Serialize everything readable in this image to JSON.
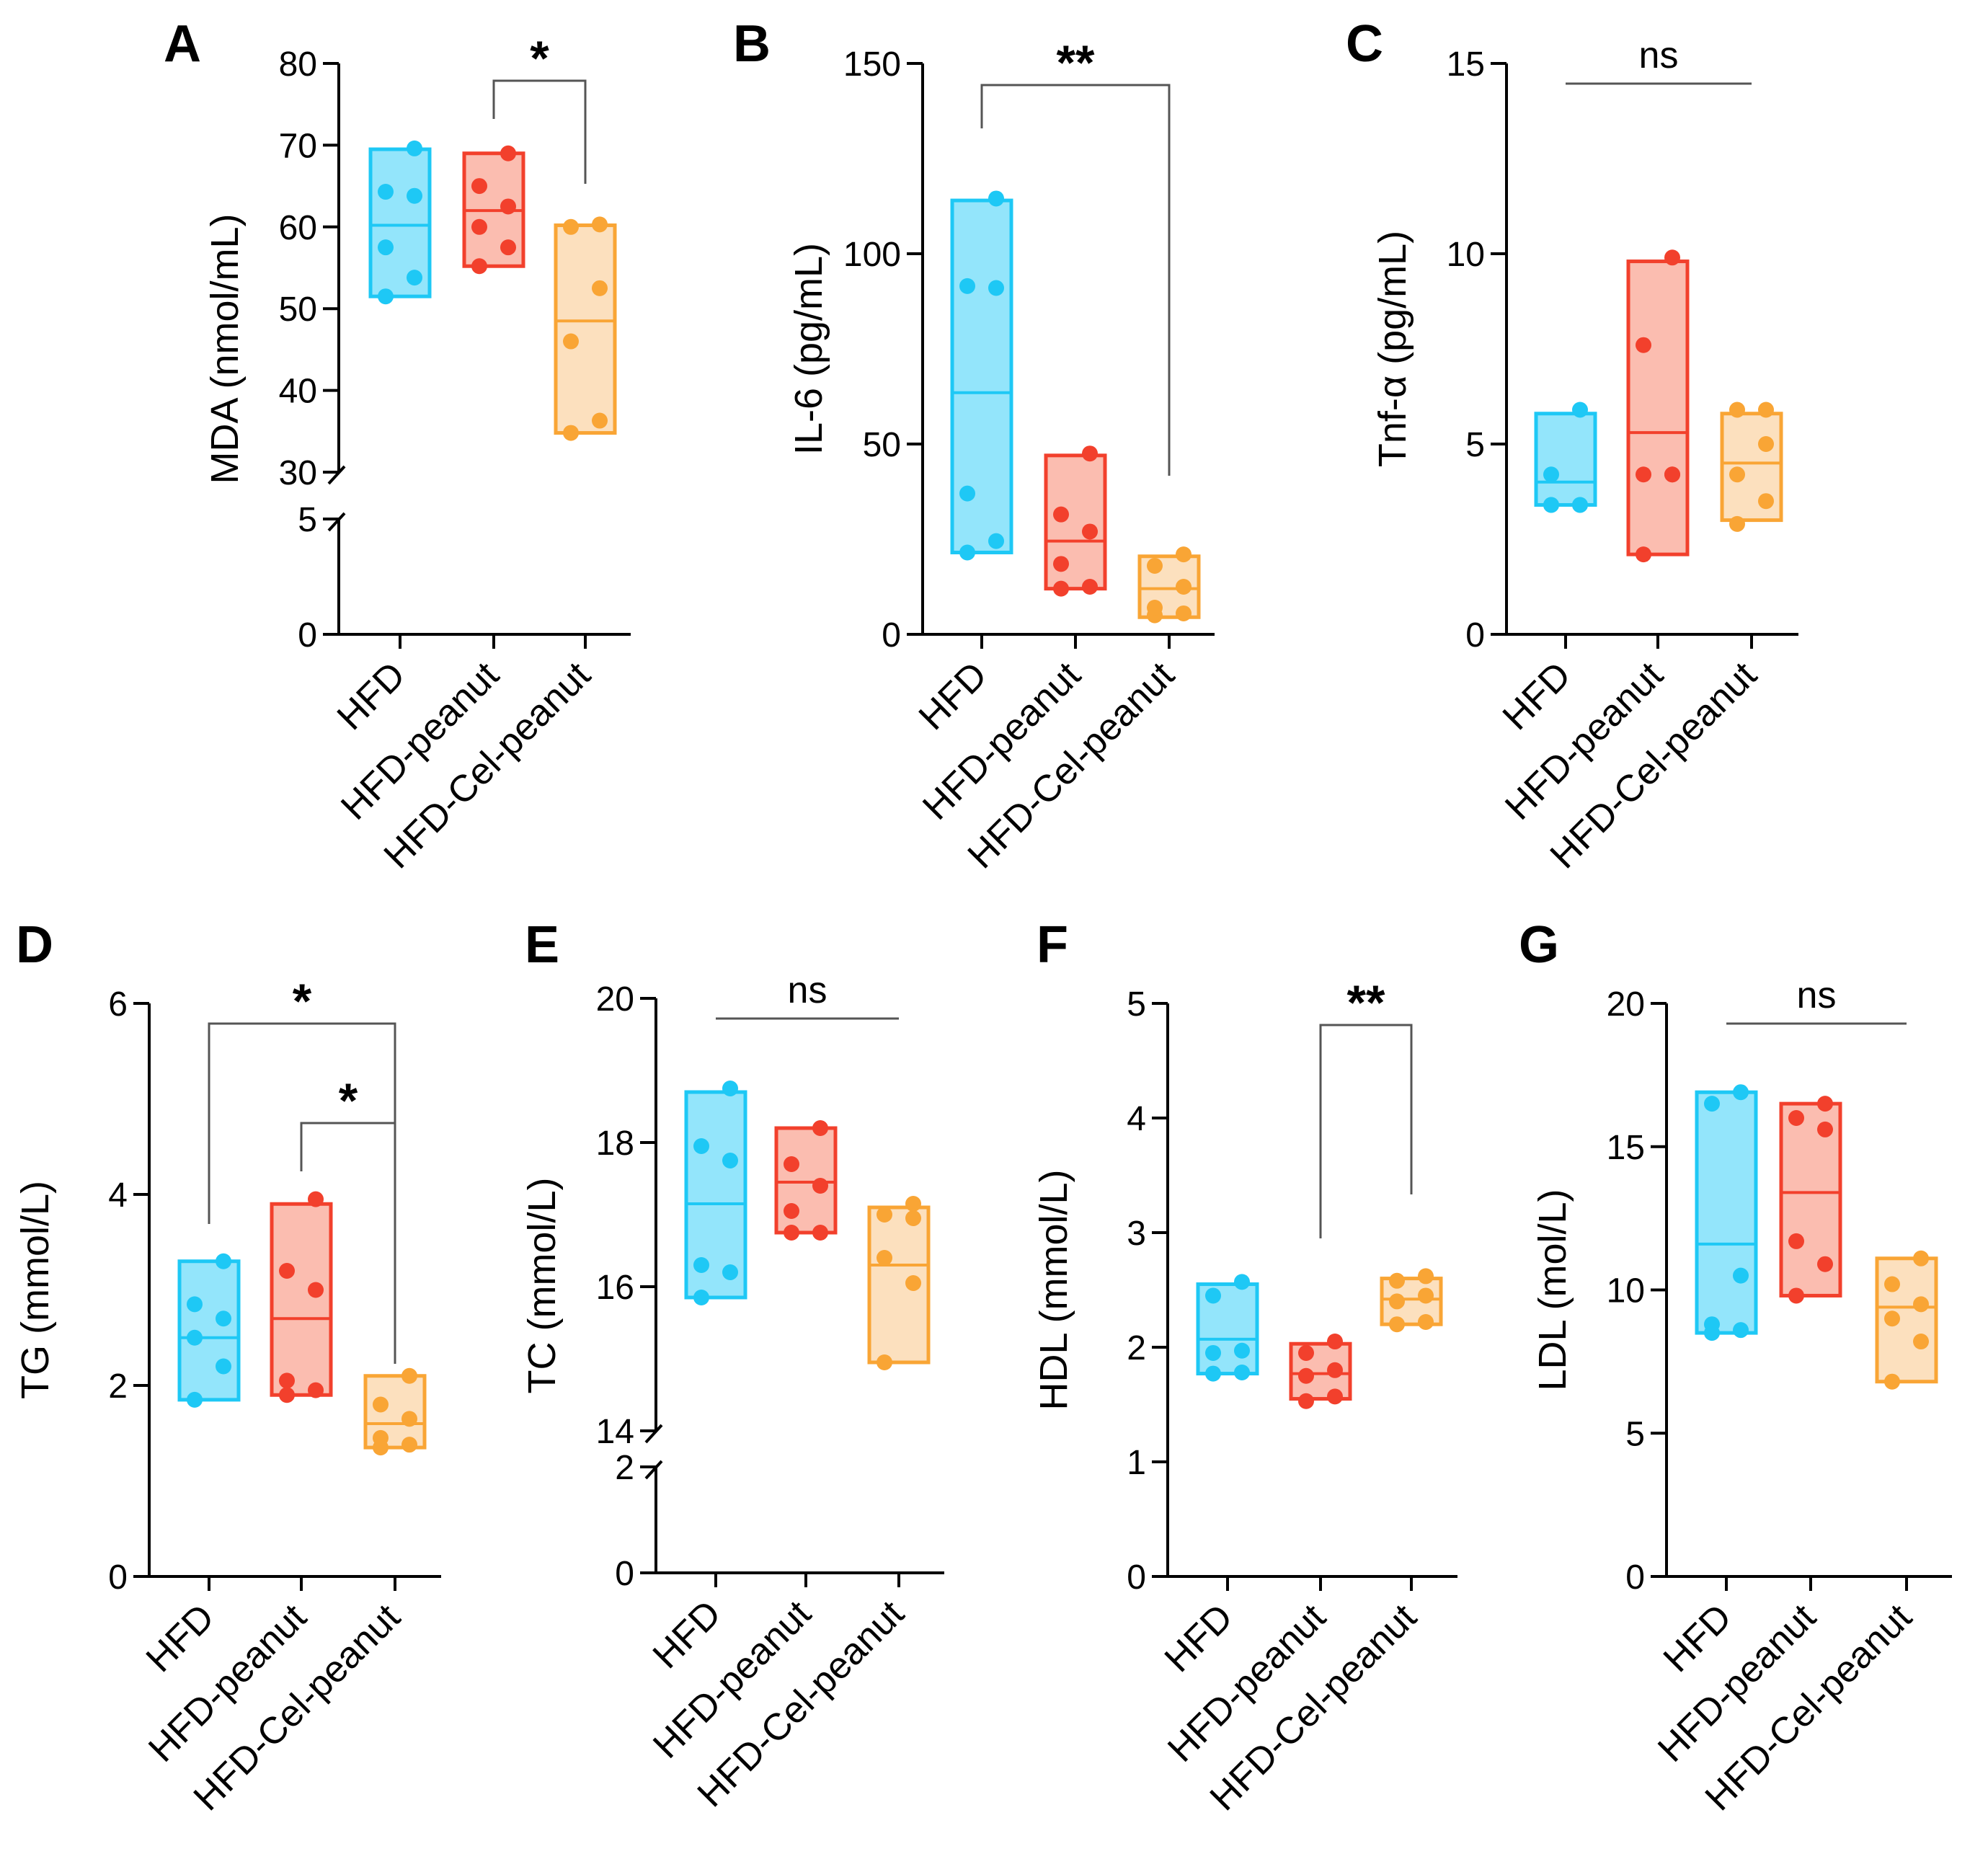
{
  "colors": {
    "HFD": "#1ec8f5",
    "HFD-peanut": "#f2402c",
    "HFD-Cel-peanut": "#f9a535",
    "HFD_fill": "#6fdcfa",
    "HFD-peanut_fill": "#f9a796",
    "HFD-Cel-peanut_fill": "#fbd6a8",
    "axis": "#000000"
  },
  "chart_data": [
    {
      "panel": "A",
      "type": "floating-bar-scatter",
      "ylabel": "MDA (nmol/mL)",
      "categories": [
        "HFD",
        "HFD-peanut",
        "HFD-Cel-peanut"
      ],
      "yticks_lower": [
        "0",
        "5"
      ],
      "yticks_upper": [
        "30",
        "40",
        "50",
        "60",
        "70",
        "80"
      ],
      "ylim_lower": [
        0,
        5
      ],
      "ylim_upper": [
        30,
        80
      ],
      "axis_break": true,
      "series": [
        {
          "name": "HFD",
          "min": 51.5,
          "max": 69.5,
          "median": 60.2,
          "points": [
            51.5,
            53.8,
            57.5,
            63.8,
            64.3,
            69.6
          ]
        },
        {
          "name": "HFD-peanut",
          "min": 55.2,
          "max": 69.0,
          "median": 62.0,
          "points": [
            55.2,
            57.5,
            60.0,
            62.5,
            65.0,
            69.0
          ]
        },
        {
          "name": "HFD-Cel-peanut",
          "min": 34.8,
          "max": 60.2,
          "median": 48.5,
          "points": [
            34.8,
            36.3,
            46.0,
            52.5,
            60.0,
            60.3
          ]
        }
      ],
      "comparisons": [
        {
          "from": 1,
          "to": 2,
          "label": "*"
        }
      ]
    },
    {
      "panel": "B",
      "type": "floating-bar-scatter",
      "ylabel": "IL-6 (pg/mL)",
      "categories": [
        "HFD",
        "HFD-peanut",
        "HFD-Cel-peanut"
      ],
      "yticks": [
        "0",
        "50",
        "100",
        "150"
      ],
      "ylim": [
        0,
        150
      ],
      "series": [
        {
          "name": "HFD",
          "min": 21.5,
          "max": 114.0,
          "median": 63.5,
          "points": [
            21.5,
            24.5,
            37.0,
            91.0,
            91.5,
            114.5
          ]
        },
        {
          "name": "HFD-peanut",
          "min": 12.0,
          "max": 47.0,
          "median": 24.5,
          "points": [
            12.0,
            12.5,
            18.5,
            27.0,
            31.5,
            47.5
          ]
        },
        {
          "name": "HFD-Cel-peanut",
          "min": 4.5,
          "max": 20.5,
          "median": 12.0,
          "points": [
            5.0,
            5.5,
            7.0,
            12.5,
            18.0,
            21.0
          ]
        }
      ],
      "comparisons": [
        {
          "from": 0,
          "to": 2,
          "label": "**"
        }
      ]
    },
    {
      "panel": "C",
      "type": "floating-bar-scatter",
      "ylabel": "Tnf-α (pg/mL)",
      "categories": [
        "HFD",
        "HFD-peanut",
        "HFD-Cel-peanut"
      ],
      "yticks": [
        "0",
        "5",
        "10",
        "15"
      ],
      "ylim": [
        0,
        15
      ],
      "series": [
        {
          "name": "HFD",
          "min": 3.4,
          "max": 5.8,
          "median": 4.0,
          "points": [
            3.4,
            3.4,
            3.4,
            3.4,
            4.2,
            5.9
          ]
        },
        {
          "name": "HFD-peanut",
          "min": 2.1,
          "max": 9.8,
          "median": 5.3,
          "points": [
            2.1,
            4.2,
            4.2,
            4.2,
            7.6,
            9.9
          ]
        },
        {
          "name": "HFD-Cel-peanut",
          "min": 3.0,
          "max": 5.8,
          "median": 4.5,
          "points": [
            2.9,
            3.5,
            4.2,
            5.0,
            5.9,
            5.9
          ]
        }
      ],
      "comparisons": [
        {
          "from": 0,
          "to": 2,
          "label": "ns",
          "flat": true
        }
      ]
    },
    {
      "panel": "D",
      "type": "floating-bar-scatter",
      "ylabel": "TG (mmol/L)",
      "categories": [
        "HFD",
        "HFD-peanut",
        "HFD-Cel-peanut"
      ],
      "yticks": [
        "0",
        "2",
        "4",
        "6"
      ],
      "ylim": [
        0,
        6
      ],
      "series": [
        {
          "name": "HFD",
          "min": 1.85,
          "max": 3.3,
          "median": 2.5,
          "points": [
            1.85,
            2.2,
            2.5,
            2.7,
            2.85,
            3.3
          ]
        },
        {
          "name": "HFD-peanut",
          "min": 1.9,
          "max": 3.9,
          "median": 2.7,
          "points": [
            1.9,
            1.95,
            2.05,
            3.0,
            3.2,
            3.95
          ]
        },
        {
          "name": "HFD-Cel-peanut",
          "min": 1.35,
          "max": 2.1,
          "median": 1.6,
          "points": [
            1.35,
            1.38,
            1.45,
            1.65,
            1.8,
            2.1
          ]
        }
      ],
      "comparisons": [
        {
          "from": 0,
          "to": 2,
          "label": "*"
        },
        {
          "from": 1,
          "to": 2,
          "label": "*"
        }
      ]
    },
    {
      "panel": "E",
      "type": "floating-bar-scatter",
      "ylabel": "TC (mmol/L)",
      "categories": [
        "HFD",
        "HFD-peanut",
        "HFD-Cel-peanut"
      ],
      "yticks_lower": [
        "0",
        "2"
      ],
      "yticks_upper": [
        "14",
        "16",
        "18",
        "20"
      ],
      "ylim_lower": [
        0,
        2
      ],
      "ylim_upper": [
        14,
        20
      ],
      "axis_break": true,
      "series": [
        {
          "name": "HFD",
          "min": 15.85,
          "max": 18.7,
          "median": 17.15,
          "points": [
            15.85,
            16.2,
            16.3,
            17.75,
            17.95,
            18.75
          ]
        },
        {
          "name": "HFD-peanut",
          "min": 16.75,
          "max": 18.2,
          "median": 17.45,
          "points": [
            16.75,
            16.75,
            17.05,
            17.4,
            17.7,
            18.2
          ]
        },
        {
          "name": "HFD-Cel-peanut",
          "min": 14.95,
          "max": 17.1,
          "median": 16.3,
          "points": [
            14.95,
            16.05,
            16.4,
            16.95,
            17.0,
            17.15
          ]
        }
      ],
      "comparisons": [
        {
          "from": 0,
          "to": 2,
          "label": "ns",
          "flat": true
        }
      ]
    },
    {
      "panel": "F",
      "type": "floating-bar-scatter",
      "ylabel": "HDL (mmol/L)",
      "categories": [
        "HFD",
        "HFD-peanut",
        "HFD-Cel-peanut"
      ],
      "yticks": [
        "0",
        "1",
        "2",
        "3",
        "4",
        "5"
      ],
      "ylim": [
        0,
        5
      ],
      "series": [
        {
          "name": "HFD",
          "min": 1.77,
          "max": 2.55,
          "median": 2.07,
          "points": [
            1.77,
            1.78,
            1.95,
            1.97,
            2.45,
            2.57
          ]
        },
        {
          "name": "HFD-peanut",
          "min": 1.55,
          "max": 2.03,
          "median": 1.77,
          "points": [
            1.53,
            1.57,
            1.75,
            1.8,
            1.95,
            2.05
          ]
        },
        {
          "name": "HFD-Cel-peanut",
          "min": 2.2,
          "max": 2.6,
          "median": 2.42,
          "points": [
            2.2,
            2.22,
            2.4,
            2.45,
            2.58,
            2.62
          ]
        }
      ],
      "comparisons": [
        {
          "from": 1,
          "to": 2,
          "label": "**"
        }
      ]
    },
    {
      "panel": "G",
      "type": "floating-bar-scatter",
      "ylabel": "LDL (mol/L)",
      "categories": [
        "HFD",
        "HFD-peanut",
        "HFD-Cel-peanut"
      ],
      "yticks": [
        "0",
        "5",
        "10",
        "15",
        "20"
      ],
      "ylim": [
        0,
        20
      ],
      "series": [
        {
          "name": "HFD",
          "min": 8.5,
          "max": 16.9,
          "median": 11.6,
          "points": [
            8.5,
            8.6,
            8.8,
            10.5,
            16.5,
            16.9
          ]
        },
        {
          "name": "HFD-peanut",
          "min": 9.8,
          "max": 16.5,
          "median": 13.4,
          "points": [
            9.8,
            10.9,
            11.7,
            15.6,
            16.0,
            16.5
          ]
        },
        {
          "name": "HFD-Cel-peanut",
          "min": 6.8,
          "max": 11.1,
          "median": 9.4,
          "points": [
            6.8,
            8.2,
            9.0,
            9.5,
            10.2,
            11.1
          ]
        }
      ],
      "comparisons": [
        {
          "from": 0,
          "to": 2,
          "label": "ns",
          "flat": true
        }
      ]
    }
  ]
}
